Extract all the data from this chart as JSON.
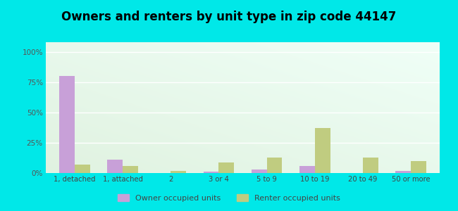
{
  "title": "Owners and renters by unit type in zip code 44147",
  "categories": [
    "1, detached",
    "1, attached",
    "2",
    "3 or 4",
    "5 to 9",
    "10 to 19",
    "20 to 49",
    "50 or more"
  ],
  "owner_values": [
    80,
    11,
    0,
    1,
    3,
    6,
    0,
    2
  ],
  "renter_values": [
    7,
    6,
    2,
    9,
    13,
    37,
    13,
    10
  ],
  "owner_color": "#c8a0d8",
  "renter_color": "#c0cc80",
  "outer_bg": "#00e8e8",
  "plot_bg_gradient_topleft": "#f0fff8",
  "plot_bg_gradient_bottomright": "#e0f0e0",
  "ylabel_ticks": [
    "0%",
    "25%",
    "50%",
    "75%",
    "100%"
  ],
  "ytick_values": [
    0,
    25,
    50,
    75,
    100
  ],
  "ylim": [
    0,
    108
  ],
  "legend_owner": "Owner occupied units",
  "legend_renter": "Renter occupied units",
  "title_fontsize": 12,
  "bar_width": 0.32,
  "grid_color": "#d8e8d0",
  "tick_color": "#808080"
}
